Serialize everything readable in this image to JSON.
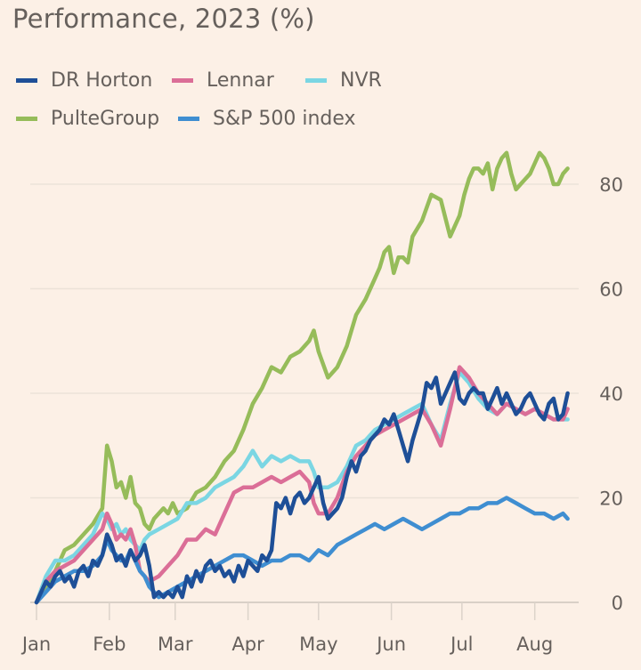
{
  "chart_data": {
    "type": "line",
    "title": "Performance, 2023 (%)",
    "xlabel": "",
    "ylabel": "",
    "x_unit": "day of year 2023",
    "xlim": [
      0,
      227
    ],
    "ylim": [
      0,
      80
    ],
    "y_ticks": [
      0,
      20,
      40,
      60,
      80
    ],
    "y_tick_labels": [
      "0",
      "20",
      "40",
      "60",
      "80"
    ],
    "x_ticks": [
      0,
      31,
      59,
      90,
      120,
      151,
      181,
      212
    ],
    "x_tick_labels": [
      "Jan",
      "Feb",
      "Mar",
      "Apr",
      "May",
      "Jun",
      "Jul",
      "Aug"
    ],
    "grid": true,
    "legend_position": "top-left",
    "series": [
      {
        "name": "PulteGroup",
        "color": "#96bc5a",
        "x": [
          0,
          4,
          8,
          12,
          16,
          20,
          24,
          28,
          30,
          32,
          34,
          36,
          38,
          40,
          42,
          44,
          46,
          48,
          50,
          52,
          54,
          56,
          58,
          60,
          64,
          68,
          72,
          76,
          80,
          84,
          88,
          92,
          96,
          100,
          104,
          108,
          112,
          116,
          118,
          120,
          124,
          128,
          132,
          136,
          140,
          144,
          146,
          148,
          150,
          152,
          154,
          156,
          158,
          160,
          164,
          168,
          172,
          176,
          180,
          182,
          184,
          186,
          188,
          190,
          192,
          194,
          196,
          198,
          200,
          202,
          204,
          206,
          208,
          210,
          212,
          214,
          216,
          218,
          220,
          222,
          224,
          226
        ],
        "y": [
          0,
          3,
          6,
          10,
          11,
          13,
          15,
          18,
          30,
          27,
          22,
          23,
          20,
          24,
          19,
          18,
          15,
          14,
          16,
          17,
          18,
          17,
          19,
          17,
          18,
          21,
          22,
          24,
          27,
          29,
          33,
          38,
          41,
          45,
          44,
          47,
          48,
          50,
          52,
          48,
          43,
          45,
          49,
          55,
          58,
          62,
          64,
          67,
          68,
          63,
          66,
          66,
          65,
          70,
          73,
          78,
          77,
          70,
          74,
          78,
          81,
          83,
          83,
          82,
          84,
          79,
          83,
          85,
          86,
          82,
          79,
          80,
          81,
          82,
          84,
          86,
          85,
          83,
          80,
          80,
          82,
          83
        ]
      },
      {
        "name": "NVR",
        "color": "#7bd6e3",
        "x": [
          0,
          4,
          8,
          12,
          16,
          20,
          24,
          28,
          30,
          32,
          34,
          36,
          38,
          40,
          42,
          44,
          46,
          48,
          52,
          56,
          60,
          64,
          68,
          72,
          76,
          80,
          84,
          88,
          92,
          96,
          100,
          104,
          108,
          112,
          116,
          118,
          120,
          124,
          128,
          132,
          136,
          140,
          144,
          148,
          152,
          156,
          160,
          164,
          168,
          172,
          176,
          180,
          184,
          188,
          192,
          196,
          200,
          204,
          208,
          212,
          216,
          220,
          224,
          226
        ],
        "y": [
          0,
          5,
          8,
          8,
          9,
          11,
          13,
          17,
          16,
          14,
          15,
          13,
          14,
          12,
          11,
          10,
          12,
          13,
          14,
          15,
          16,
          19,
          19,
          20,
          22,
          23,
          24,
          26,
          29,
          26,
          28,
          27,
          28,
          27,
          27,
          25,
          22,
          22,
          23,
          26,
          30,
          31,
          33,
          34,
          35,
          36,
          37,
          38,
          34,
          31,
          38,
          44,
          42,
          39,
          37,
          36,
          38,
          37,
          36,
          37,
          36,
          35,
          35,
          35
        ]
      },
      {
        "name": "Lennar",
        "color": "#db6e97",
        "x": [
          0,
          4,
          8,
          12,
          16,
          20,
          24,
          28,
          30,
          32,
          34,
          36,
          38,
          40,
          42,
          44,
          46,
          48,
          52,
          56,
          60,
          64,
          68,
          72,
          76,
          80,
          84,
          88,
          92,
          96,
          100,
          104,
          108,
          112,
          116,
          118,
          120,
          124,
          128,
          132,
          136,
          140,
          144,
          148,
          152,
          156,
          160,
          164,
          168,
          172,
          176,
          180,
          184,
          188,
          192,
          196,
          200,
          204,
          208,
          212,
          216,
          220,
          224,
          226
        ],
        "y": [
          0,
          4,
          6,
          7,
          8,
          10,
          12,
          14,
          17,
          15,
          12,
          13,
          12,
          14,
          11,
          6,
          5,
          4,
          5,
          7,
          9,
          12,
          12,
          14,
          13,
          17,
          21,
          22,
          22,
          23,
          24,
          23,
          24,
          25,
          23,
          19,
          17,
          17,
          20,
          25,
          28,
          30,
          32,
          33,
          34,
          35,
          36,
          37,
          34,
          30,
          37,
          45,
          43,
          40,
          38,
          36,
          38,
          37,
          36,
          37,
          36,
          35,
          35,
          37
        ]
      },
      {
        "name": "DR Horton",
        "color": "#1e4f97",
        "x": [
          0,
          2,
          4,
          6,
          8,
          10,
          12,
          14,
          16,
          18,
          20,
          22,
          24,
          26,
          28,
          30,
          32,
          34,
          36,
          38,
          40,
          42,
          44,
          46,
          48,
          50,
          52,
          54,
          56,
          58,
          60,
          62,
          64,
          66,
          68,
          70,
          72,
          74,
          76,
          78,
          80,
          82,
          84,
          86,
          88,
          90,
          92,
          94,
          96,
          98,
          100,
          102,
          104,
          106,
          108,
          110,
          112,
          114,
          116,
          118,
          120,
          122,
          124,
          126,
          128,
          130,
          132,
          134,
          136,
          138,
          140,
          142,
          144,
          146,
          148,
          150,
          152,
          154,
          156,
          158,
          160,
          162,
          164,
          166,
          168,
          170,
          172,
          174,
          176,
          178,
          180,
          182,
          184,
          186,
          188,
          190,
          192,
          194,
          196,
          198,
          200,
          202,
          204,
          206,
          208,
          210,
          212,
          214,
          216,
          218,
          220,
          222,
          224,
          226
        ],
        "y": [
          0,
          2,
          4,
          3,
          5,
          6,
          4,
          5,
          3,
          6,
          7,
          5,
          8,
          7,
          9,
          13,
          11,
          8,
          9,
          7,
          10,
          8,
          9,
          11,
          7,
          1,
          2,
          1,
          2,
          1,
          3,
          1,
          5,
          3,
          6,
          4,
          7,
          8,
          6,
          7,
          5,
          6,
          4,
          7,
          5,
          8,
          7,
          6,
          9,
          8,
          10,
          19,
          18,
          20,
          17,
          20,
          21,
          19,
          20,
          22,
          24,
          19,
          16,
          17,
          18,
          20,
          24,
          27,
          25,
          28,
          29,
          31,
          32,
          33,
          35,
          34,
          36,
          33,
          30,
          27,
          31,
          34,
          37,
          42,
          41,
          43,
          38,
          40,
          42,
          44,
          39,
          38,
          40,
          41,
          40,
          40,
          37,
          39,
          41,
          38,
          40,
          38,
          36,
          37,
          39,
          40,
          38,
          36,
          35,
          38,
          39,
          35,
          36,
          40
        ]
      },
      {
        "name": "S&P 500 index",
        "color": "#3f8ed1",
        "x": [
          0,
          4,
          8,
          12,
          16,
          20,
          24,
          28,
          30,
          32,
          34,
          36,
          38,
          40,
          42,
          44,
          46,
          48,
          50,
          52,
          56,
          60,
          64,
          68,
          72,
          76,
          80,
          84,
          88,
          92,
          96,
          100,
          104,
          108,
          112,
          116,
          120,
          124,
          128,
          132,
          136,
          140,
          144,
          148,
          152,
          156,
          160,
          164,
          168,
          172,
          176,
          180,
          184,
          188,
          192,
          196,
          200,
          204,
          208,
          212,
          216,
          220,
          224,
          226
        ],
        "y": [
          0,
          2,
          4,
          5,
          6,
          6,
          7,
          9,
          12,
          10,
          9,
          8,
          8,
          10,
          8,
          6,
          5,
          3,
          2,
          1,
          2,
          3,
          4,
          5,
          6,
          7,
          8,
          9,
          9,
          8,
          7,
          8,
          8,
          9,
          9,
          8,
          10,
          9,
          11,
          12,
          13,
          14,
          15,
          14,
          15,
          16,
          15,
          14,
          15,
          16,
          17,
          17,
          18,
          18,
          19,
          19,
          20,
          19,
          18,
          17,
          17,
          16,
          17,
          16
        ]
      }
    ]
  }
}
